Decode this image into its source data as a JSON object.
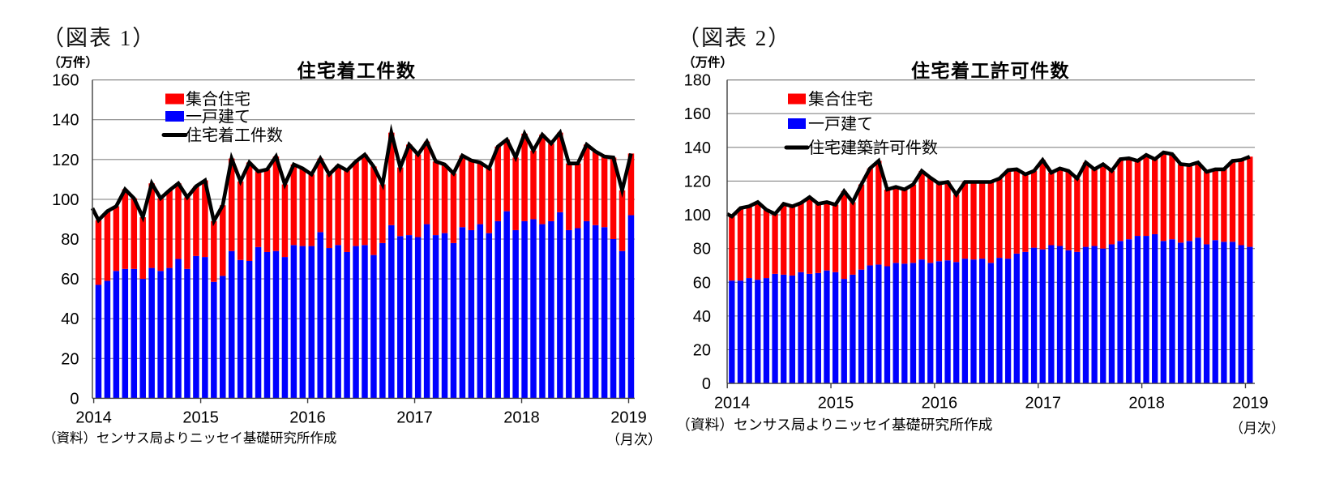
{
  "page": {
    "background": "#ffffff"
  },
  "colors": {
    "multi_family_bar": "#ff0000",
    "single_family_bar": "#0000ff",
    "total_line": "#000000",
    "gridline": "#868686",
    "axis": "#404040",
    "text": "#000000"
  },
  "chart_data": [
    {
      "type": "bar",
      "subtype": "stacked-bars-with-total-line",
      "figure_caption": "（図表 1）",
      "title": "住宅着工件数",
      "units_label": "（万件）",
      "footer_source": "（資料）センサス局よりニッセイ基礎研究所作成",
      "frequency_label": "（月次）",
      "legend": [
        {
          "label": "集合住宅",
          "swatch": "red-box"
        },
        {
          "label": "一戸建て",
          "swatch": "blue-box"
        },
        {
          "label": "住宅着工件数",
          "swatch": "black-line"
        }
      ],
      "ylim": [
        0,
        160
      ],
      "ytick_step": 20,
      "yticks": [
        0,
        20,
        40,
        60,
        80,
        100,
        120,
        140,
        160
      ],
      "xtick_labels": [
        "2014",
        "2015",
        "2016",
        "2017",
        "2018",
        "2019"
      ],
      "grid": true,
      "legend_position": "top-left-inside",
      "categories": [
        "2014-01",
        "2014-02",
        "2014-03",
        "2014-04",
        "2014-05",
        "2014-06",
        "2014-07",
        "2014-08",
        "2014-09",
        "2014-10",
        "2014-11",
        "2014-12",
        "2015-01",
        "2015-02",
        "2015-03",
        "2015-04",
        "2015-05",
        "2015-06",
        "2015-07",
        "2015-08",
        "2015-09",
        "2015-10",
        "2015-11",
        "2015-12",
        "2016-01",
        "2016-02",
        "2016-03",
        "2016-04",
        "2016-05",
        "2016-06",
        "2016-07",
        "2016-08",
        "2016-09",
        "2016-10",
        "2016-11",
        "2016-12",
        "2017-01",
        "2017-02",
        "2017-03",
        "2017-04",
        "2017-05",
        "2017-06",
        "2017-07",
        "2017-08",
        "2017-09",
        "2017-10",
        "2017-11",
        "2017-12",
        "2018-01",
        "2018-02",
        "2018-03",
        "2018-04",
        "2018-05",
        "2018-06",
        "2018-07",
        "2018-08",
        "2018-09",
        "2018-10",
        "2018-11",
        "2018-12",
        "2019-01"
      ],
      "series": [
        {
          "name": "一戸建て",
          "values": [
            57,
            59,
            64,
            65,
            65,
            60,
            65.5,
            64,
            65.5,
            70,
            65,
            71.5,
            71,
            58.5,
            61.5,
            74,
            69.5,
            69,
            76,
            73.5,
            74,
            71,
            77,
            76.5,
            76.5,
            83.5,
            75.5,
            77,
            73.5,
            76.5,
            77,
            72,
            78,
            87,
            81.5,
            82,
            81,
            87.5,
            82,
            83,
            78,
            86,
            84.5,
            87.5,
            83,
            89,
            94,
            84.5,
            89,
            90,
            87.5,
            89,
            93.5,
            84.5,
            85.5,
            89,
            87,
            86,
            80,
            74,
            92
          ]
        },
        {
          "name": "住宅着工件数(合計)",
          "values": [
            89.5,
            94,
            96.5,
            105,
            100.5,
            91,
            108,
            100.5,
            104.5,
            108,
            101,
            106.5,
            109.5,
            89,
            97,
            120.5,
            109,
            118.5,
            114,
            115,
            121.5,
            107.5,
            117.5,
            115.5,
            112.5,
            120.5,
            112.5,
            117,
            114.5,
            119,
            122.5,
            116.5,
            107.5,
            133.5,
            116,
            127.5,
            122.5,
            129,
            119,
            117.5,
            113,
            122,
            119.5,
            118.5,
            115.5,
            126.5,
            130,
            121,
            133,
            124.5,
            132.5,
            128,
            133.5,
            118,
            118,
            127.5,
            124,
            121.5,
            121,
            104.5,
            123
          ]
        }
      ],
      "line_lead_in_value": 95.5
    },
    {
      "type": "bar",
      "subtype": "stacked-bars-with-total-line",
      "figure_caption": "（図表 2）",
      "title": "住宅着工許可件数",
      "units_label": "（万件）",
      "footer_source": "（資料）センサス局よりニッセイ基礎研究所作成",
      "frequency_label": "（月次）",
      "legend": [
        {
          "label": "集合住宅",
          "swatch": "red-box"
        },
        {
          "label": "一戸建て",
          "swatch": "blue-box"
        },
        {
          "label": "住宅建築許可件数",
          "swatch": "black-line"
        }
      ],
      "ylim": [
        0,
        180
      ],
      "ytick_step": 20,
      "yticks": [
        0,
        20,
        40,
        60,
        80,
        100,
        120,
        140,
        160,
        180
      ],
      "xtick_labels": [
        "2014",
        "2015",
        "2016",
        "2017",
        "2018",
        "2019"
      ],
      "grid": true,
      "legend_position": "top-left-inside",
      "categories": [
        "2014-01",
        "2014-02",
        "2014-03",
        "2014-04",
        "2014-05",
        "2014-06",
        "2014-07",
        "2014-08",
        "2014-09",
        "2014-10",
        "2014-11",
        "2014-12",
        "2015-01",
        "2015-02",
        "2015-03",
        "2015-04",
        "2015-05",
        "2015-06",
        "2015-07",
        "2015-08",
        "2015-09",
        "2015-10",
        "2015-11",
        "2015-12",
        "2016-01",
        "2016-02",
        "2016-03",
        "2016-04",
        "2016-05",
        "2016-06",
        "2016-07",
        "2016-08",
        "2016-09",
        "2016-10",
        "2016-11",
        "2016-12",
        "2017-01",
        "2017-02",
        "2017-03",
        "2017-04",
        "2017-05",
        "2017-06",
        "2017-07",
        "2017-08",
        "2017-09",
        "2017-10",
        "2017-11",
        "2017-12",
        "2018-01",
        "2018-02",
        "2018-03",
        "2018-04",
        "2018-05",
        "2018-06",
        "2018-07",
        "2018-08",
        "2018-09",
        "2018-10",
        "2018-11",
        "2018-12",
        "2019-01"
      ],
      "series": [
        {
          "name": "一戸建て",
          "values": [
            61,
            61,
            62.5,
            61.5,
            62.5,
            65,
            64.5,
            64,
            66,
            65,
            65.5,
            67,
            66,
            62,
            64.5,
            67.5,
            70,
            70.5,
            69.5,
            71.5,
            71,
            71.5,
            73.5,
            71.5,
            72.5,
            73,
            72,
            74,
            73.5,
            74,
            71.5,
            74.5,
            74,
            77,
            78,
            80.5,
            79.5,
            82,
            81.5,
            79,
            78,
            81,
            81.5,
            80,
            82.5,
            84.5,
            85.5,
            87.5,
            87.5,
            88.5,
            84.5,
            85.5,
            83.5,
            84.5,
            86.5,
            82.5,
            85,
            84,
            84,
            82,
            81
          ]
        },
        {
          "name": "住宅建築許可件数(合計)",
          "values": [
            99,
            104,
            105,
            107.5,
            103,
            100.5,
            106.5,
            105,
            107,
            110.5,
            106.5,
            107.5,
            106,
            114,
            107.5,
            118,
            127.5,
            132,
            115,
            116.5,
            115,
            118,
            126,
            122,
            118.5,
            119.5,
            112,
            119.5,
            119.5,
            119.5,
            119.5,
            121.5,
            126.5,
            127,
            124,
            126,
            132.5,
            125,
            127.5,
            126,
            121.5,
            131,
            127,
            130,
            126,
            133,
            133.5,
            132,
            135.5,
            133,
            137,
            136,
            130,
            129.5,
            131,
            125.5,
            127,
            127,
            132,
            132.5,
            134.5
          ]
        }
      ],
      "line_lead_in_value": 100.5
    }
  ]
}
